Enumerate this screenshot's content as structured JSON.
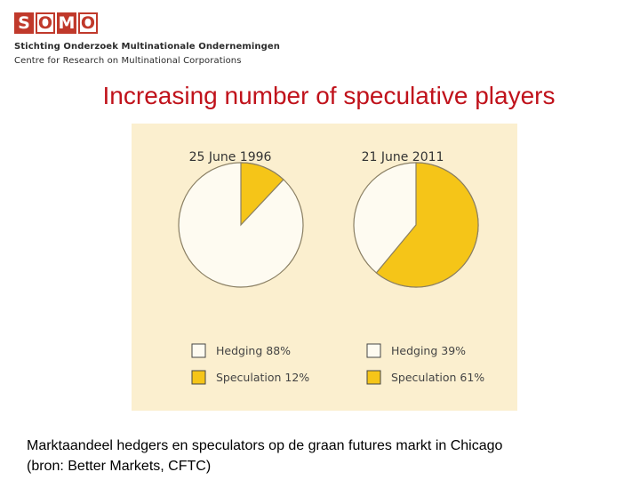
{
  "header": {
    "logo_letters": [
      "S",
      "O",
      "M",
      "O"
    ],
    "org_line1": "Stichting Onderzoek Multinationale Ondernemingen",
    "org_line2": "Centre for Research on Multinational Corporations"
  },
  "slide": {
    "title": "Increasing number of speculative players",
    "caption_line1": "Marktaandeel hedgers en speculators op de graan futures markt in Chicago",
    "caption_line2": "(bron: Better Markets, CFTC)"
  },
  "colors": {
    "background": "#fbefcf",
    "hedging": "#fefbf1",
    "speculation": "#f5c518",
    "outline": "#8a7f63",
    "title": "#c0121b"
  },
  "chart_data": [
    {
      "type": "pie",
      "title": "25 June 1996",
      "categories": [
        "Hedging",
        "Speculation"
      ],
      "values": [
        88,
        12
      ],
      "legend": [
        "Hedging 88%",
        "Speculation 12%"
      ],
      "legend_position": "bottom"
    },
    {
      "type": "pie",
      "title": "21 June 2011",
      "categories": [
        "Hedging",
        "Speculation"
      ],
      "values": [
        39,
        61
      ],
      "legend": [
        "Hedging 39%",
        "Speculation 61%"
      ],
      "legend_position": "bottom"
    }
  ]
}
